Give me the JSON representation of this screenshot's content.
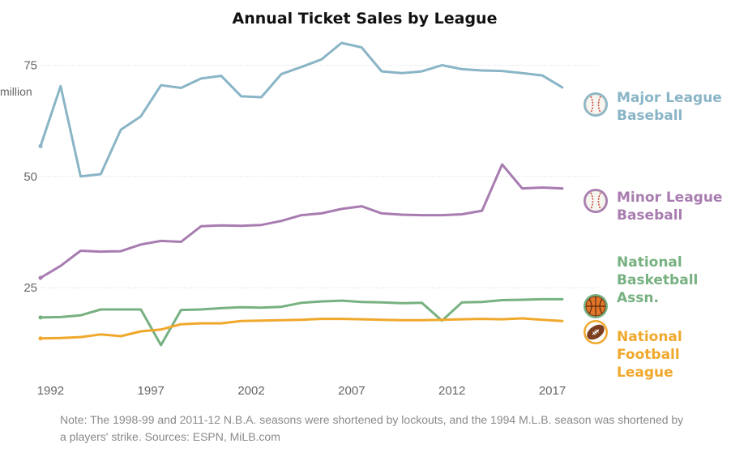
{
  "chart_data": {
    "type": "line",
    "title": "Annual Ticket Sales by League",
    "ylabel_unit": "million",
    "ylim": [
      7,
      82
    ],
    "xlim": [
      1991.5,
      2019.2
    ],
    "yticks": [
      25,
      50,
      75
    ],
    "xticks": [
      1992,
      1997,
      2002,
      2007,
      2012,
      2017
    ],
    "grid": "horizontal dotted",
    "legend": "direct labels at right end of each line",
    "series": [
      {
        "name": "Major League Baseball",
        "label_lines": [
          "Major League",
          "Baseball"
        ],
        "color": "#8ab5c6",
        "icon": "baseball-icon",
        "x": [
          1991.5,
          1992.5,
          1993.5,
          1994.5,
          1995.5,
          1996.5,
          1997.5,
          1998.5,
          1999.5,
          2000.5,
          2001.5,
          2002.5,
          2003.5,
          2004.5,
          2005.5,
          2006.5,
          2007.5,
          2008.5,
          2009.5,
          2010.5,
          2011.5,
          2012.5,
          2013.5,
          2014.5,
          2015.5,
          2016.5,
          2017.5
        ],
        "values": [
          56.8,
          70.3,
          50.0,
          50.5,
          60.5,
          63.5,
          70.5,
          69.9,
          72.0,
          72.6,
          68.0,
          67.8,
          73.0,
          74.6,
          76.3,
          80.0,
          79.0,
          73.6,
          73.2,
          73.6,
          75.0,
          74.1,
          73.8,
          73.7,
          73.2,
          72.7,
          70.0
        ]
      },
      {
        "name": "Minor League Baseball",
        "label_lines": [
          "Minor League",
          "Baseball"
        ],
        "color": "#a87cb0",
        "icon": "baseball-icon",
        "x": [
          1991.5,
          1992.5,
          1993.5,
          1994.5,
          1995.5,
          1996.5,
          1997.5,
          1998.5,
          1999.5,
          2000.5,
          2001.5,
          2002.5,
          2003.5,
          2004.5,
          2005.5,
          2006.5,
          2007.5,
          2008.5,
          2009.5,
          2010.5,
          2011.5,
          2012.5,
          2013.5,
          2014.5,
          2015.5,
          2016.5,
          2017.5
        ],
        "values": [
          27.2,
          29.9,
          33.3,
          33.1,
          33.2,
          34.7,
          35.5,
          35.3,
          38.8,
          39.0,
          38.9,
          39.1,
          40.0,
          41.3,
          41.7,
          42.7,
          43.3,
          41.7,
          41.4,
          41.3,
          41.3,
          41.5,
          42.3,
          52.7,
          47.3,
          47.5,
          47.3
        ]
      },
      {
        "name": "National Basketball Assn.",
        "label_lines": [
          "National",
          "Basketball",
          "Assn."
        ],
        "color": "#77b181",
        "icon": "basketball-icon",
        "x": [
          1991.5,
          1992.5,
          1993.5,
          1994.5,
          1995.5,
          1996.5,
          1997.5,
          1998.5,
          1999.5,
          2000.5,
          2001.5,
          2002.5,
          2003.5,
          2004.5,
          2005.5,
          2006.5,
          2007.5,
          2008.5,
          2009.5,
          2010.5,
          2011.5,
          2012.5,
          2013.5,
          2014.5,
          2015.5,
          2016.5,
          2017.5
        ],
        "values": [
          18.3,
          18.4,
          18.8,
          20.1,
          20.1,
          20.1,
          12.1,
          20.0,
          20.1,
          20.4,
          20.6,
          20.5,
          20.7,
          21.6,
          21.9,
          22.1,
          21.8,
          21.7,
          21.5,
          21.6,
          17.6,
          21.7,
          21.8,
          22.2,
          22.3,
          22.4,
          22.4
        ]
      },
      {
        "name": "National Football League",
        "label_lines": [
          "National",
          "Football",
          "League"
        ],
        "color": "#f0a82c",
        "icon": "football-icon",
        "x": [
          1991.5,
          1992.5,
          1993.5,
          1994.5,
          1995.5,
          1996.5,
          1997.5,
          1998.5,
          1999.5,
          2000.5,
          2001.5,
          2002.5,
          2003.5,
          2004.5,
          2005.5,
          2006.5,
          2007.5,
          2008.5,
          2009.5,
          2010.5,
          2011.5,
          2012.5,
          2013.5,
          2014.5,
          2015.5,
          2016.5,
          2017.5
        ],
        "values": [
          13.6,
          13.7,
          13.9,
          14.5,
          14.1,
          15.2,
          15.6,
          16.8,
          17.0,
          17.0,
          17.5,
          17.6,
          17.7,
          17.8,
          18.0,
          18.0,
          17.9,
          17.8,
          17.7,
          17.7,
          17.8,
          17.9,
          18.0,
          17.9,
          18.1,
          17.8,
          17.5
        ]
      }
    ]
  },
  "note": "Note: The 1998-99 and 2011-12 N.B.A. seasons were shortened by lockouts, and the 1994 M.L.B. season was shortened by a players' strike. Sources: ESPN, MiLB.com"
}
